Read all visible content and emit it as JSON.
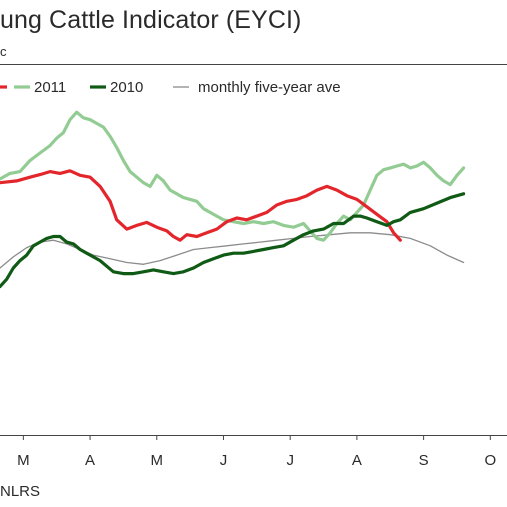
{
  "chart_data": {
    "type": "line",
    "title": "ung Cattle Indicator (EYCI)",
    "y_unit_fragment": "c",
    "source": "NLRS",
    "grid": false,
    "legend": "top-left",
    "xlabel": "",
    "ylabel": "",
    "x_ticks": [
      "M",
      "A",
      "M",
      "J",
      "J",
      "A",
      "S",
      "O"
    ],
    "xlim": [
      2.65,
      10.25
    ],
    "ylim": [
      0,
      100
    ],
    "series": [
      {
        "name": "",
        "color": "#e3262b",
        "points": [
          [
            2.65,
            68
          ],
          [
            2.9,
            68.5
          ],
          [
            3.1,
            69.5
          ],
          [
            3.25,
            70.2
          ],
          [
            3.4,
            71
          ],
          [
            3.55,
            70.5
          ],
          [
            3.7,
            71.2
          ],
          [
            3.85,
            70
          ],
          [
            4.0,
            69.5
          ],
          [
            4.15,
            67
          ],
          [
            4.3,
            63
          ],
          [
            4.4,
            58
          ],
          [
            4.55,
            55.5
          ],
          [
            4.7,
            56.5
          ],
          [
            4.85,
            57.3
          ],
          [
            5.0,
            56
          ],
          [
            5.15,
            55
          ],
          [
            5.25,
            53.5
          ],
          [
            5.35,
            52.5
          ],
          [
            5.45,
            54
          ],
          [
            5.6,
            53.5
          ],
          [
            5.75,
            54.5
          ],
          [
            5.9,
            55.5
          ],
          [
            6.05,
            57.5
          ],
          [
            6.2,
            58.5
          ],
          [
            6.35,
            58
          ],
          [
            6.5,
            59
          ],
          [
            6.65,
            60
          ],
          [
            6.8,
            62
          ],
          [
            6.95,
            63
          ],
          [
            7.1,
            63.5
          ],
          [
            7.25,
            64.5
          ],
          [
            7.4,
            66
          ],
          [
            7.55,
            67
          ],
          [
            7.7,
            66
          ],
          [
            7.85,
            64.5
          ],
          [
            8.0,
            63.5
          ],
          [
            8.15,
            61.5
          ],
          [
            8.3,
            59.5
          ],
          [
            8.45,
            57.5
          ],
          [
            8.55,
            54.5
          ],
          [
            8.65,
            52.5
          ]
        ]
      },
      {
        "name": "2011",
        "color": "#93cc93",
        "points": [
          [
            2.65,
            69
          ],
          [
            2.8,
            70.5
          ],
          [
            2.95,
            71
          ],
          [
            3.1,
            74
          ],
          [
            3.25,
            76
          ],
          [
            3.4,
            78
          ],
          [
            3.5,
            80
          ],
          [
            3.6,
            81.5
          ],
          [
            3.7,
            85
          ],
          [
            3.8,
            87
          ],
          [
            3.9,
            85.5
          ],
          [
            4.0,
            85
          ],
          [
            4.1,
            84
          ],
          [
            4.2,
            83
          ],
          [
            4.3,
            80.5
          ],
          [
            4.4,
            77.5
          ],
          [
            4.5,
            74
          ],
          [
            4.6,
            71
          ],
          [
            4.7,
            69.5
          ],
          [
            4.8,
            68
          ],
          [
            4.9,
            67
          ],
          [
            5.0,
            70
          ],
          [
            5.1,
            68.5
          ],
          [
            5.2,
            66
          ],
          [
            5.3,
            65
          ],
          [
            5.4,
            64
          ],
          [
            5.5,
            63.5
          ],
          [
            5.6,
            63
          ],
          [
            5.7,
            61
          ],
          [
            5.8,
            60
          ],
          [
            5.9,
            59
          ],
          [
            6.0,
            58
          ],
          [
            6.15,
            57.5
          ],
          [
            6.3,
            57
          ],
          [
            6.45,
            57.5
          ],
          [
            6.6,
            57
          ],
          [
            6.75,
            57.5
          ],
          [
            6.9,
            56.5
          ],
          [
            7.05,
            56
          ],
          [
            7.2,
            57
          ],
          [
            7.3,
            55
          ],
          [
            7.4,
            53
          ],
          [
            7.5,
            52.5
          ],
          [
            7.6,
            54.5
          ],
          [
            7.7,
            57
          ],
          [
            7.8,
            59
          ],
          [
            7.9,
            58
          ],
          [
            8.0,
            60
          ],
          [
            8.1,
            62
          ],
          [
            8.2,
            66
          ],
          [
            8.3,
            70
          ],
          [
            8.4,
            71.5
          ],
          [
            8.5,
            72
          ],
          [
            8.6,
            72.5
          ],
          [
            8.7,
            73
          ],
          [
            8.8,
            72
          ],
          [
            8.9,
            72.5
          ],
          [
            9.0,
            73.5
          ],
          [
            9.1,
            72
          ],
          [
            9.2,
            70
          ],
          [
            9.3,
            68.5
          ],
          [
            9.4,
            67.5
          ],
          [
            9.5,
            70
          ],
          [
            9.6,
            72
          ]
        ]
      },
      {
        "name": "2010",
        "color": "#0f5a14",
        "points": [
          [
            2.65,
            40
          ],
          [
            2.75,
            42
          ],
          [
            2.85,
            45
          ],
          [
            2.95,
            47
          ],
          [
            3.05,
            48.5
          ],
          [
            3.15,
            51
          ],
          [
            3.25,
            52
          ],
          [
            3.35,
            53
          ],
          [
            3.45,
            53.5
          ],
          [
            3.55,
            53.5
          ],
          [
            3.65,
            52
          ],
          [
            3.75,
            51.5
          ],
          [
            3.85,
            50
          ],
          [
            3.95,
            49
          ],
          [
            4.05,
            48
          ],
          [
            4.15,
            47
          ],
          [
            4.25,
            45.5
          ],
          [
            4.35,
            44
          ],
          [
            4.5,
            43.5
          ],
          [
            4.65,
            43.5
          ],
          [
            4.8,
            44
          ],
          [
            4.95,
            44.5
          ],
          [
            5.1,
            44
          ],
          [
            5.25,
            43.5
          ],
          [
            5.4,
            44
          ],
          [
            5.55,
            45
          ],
          [
            5.7,
            46.5
          ],
          [
            5.85,
            47.5
          ],
          [
            6.0,
            48.5
          ],
          [
            6.15,
            49
          ],
          [
            6.3,
            49
          ],
          [
            6.45,
            49.5
          ],
          [
            6.6,
            50
          ],
          [
            6.75,
            50.5
          ],
          [
            6.9,
            51
          ],
          [
            7.05,
            52.5
          ],
          [
            7.2,
            54
          ],
          [
            7.35,
            55
          ],
          [
            7.5,
            55.5
          ],
          [
            7.65,
            57
          ],
          [
            7.8,
            57
          ],
          [
            7.95,
            59
          ],
          [
            8.05,
            59
          ],
          [
            8.15,
            58.5
          ],
          [
            8.3,
            57.5
          ],
          [
            8.45,
            56.5
          ],
          [
            8.55,
            57.5
          ],
          [
            8.65,
            58
          ],
          [
            8.8,
            60
          ],
          [
            9.0,
            61
          ],
          [
            9.2,
            62.5
          ],
          [
            9.4,
            64
          ],
          [
            9.6,
            65
          ]
        ]
      },
      {
        "name": "monthly five-year ave",
        "color": "#8c8c8c",
        "points": [
          [
            2.65,
            45
          ],
          [
            2.85,
            48
          ],
          [
            3.05,
            50.5
          ],
          [
            3.25,
            52
          ],
          [
            3.45,
            52.5
          ],
          [
            3.65,
            51.5
          ],
          [
            3.85,
            50
          ],
          [
            4.05,
            48.5
          ],
          [
            4.3,
            47.5
          ],
          [
            4.55,
            46.5
          ],
          [
            4.8,
            46
          ],
          [
            5.05,
            47
          ],
          [
            5.3,
            48.5
          ],
          [
            5.55,
            50
          ],
          [
            5.8,
            50.5
          ],
          [
            6.05,
            51
          ],
          [
            6.3,
            51.5
          ],
          [
            6.55,
            52
          ],
          [
            6.8,
            52.5
          ],
          [
            7.05,
            53
          ],
          [
            7.3,
            53.5
          ],
          [
            7.6,
            54
          ],
          [
            7.9,
            54.5
          ],
          [
            8.2,
            54.5
          ],
          [
            8.5,
            54
          ],
          [
            8.8,
            53
          ],
          [
            9.1,
            51
          ],
          [
            9.35,
            48.5
          ],
          [
            9.6,
            46.5
          ]
        ]
      }
    ]
  }
}
